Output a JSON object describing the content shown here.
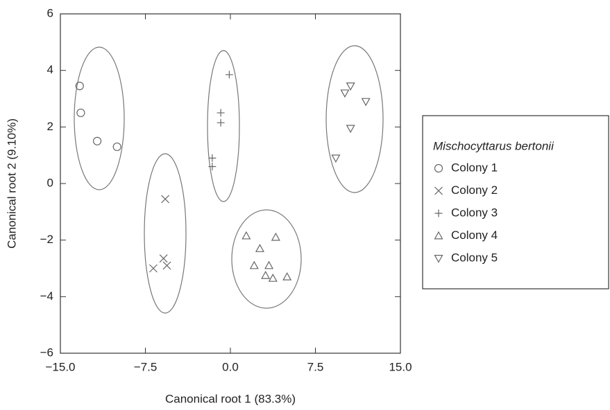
{
  "chart_data": {
    "type": "scatter",
    "xlabel": "Canonical root 1 (83.3%)",
    "ylabel": "Canonical root 2 (9.10%)",
    "xlim": [
      -15,
      15
    ],
    "ylim": [
      -6,
      6
    ],
    "xticks": [
      {
        "value": -15,
        "label": "−15.0"
      },
      {
        "value": -7.5,
        "label": "−7.5"
      },
      {
        "value": 0,
        "label": "0.0"
      },
      {
        "value": 7.5,
        "label": "7.5"
      },
      {
        "value": 15,
        "label": "15.0"
      }
    ],
    "yticks": [
      {
        "value": -6,
        "label": "−6"
      },
      {
        "value": -4,
        "label": "−4"
      },
      {
        "value": -2,
        "label": "−2"
      },
      0,
      2,
      4,
      6
    ],
    "legend_title": "Mischocyttarus bertonii",
    "series": [
      {
        "name": "Colony 1",
        "marker": "circle",
        "color": "#666666",
        "x": [
          -13.3,
          -13.2,
          -11.75,
          -10.0
        ],
        "values": [
          3.45,
          2.5,
          1.5,
          1.3
        ]
      },
      {
        "name": "Colony 2",
        "marker": "x",
        "color": "#666666",
        "x": [
          -5.75,
          -5.9,
          -5.6,
          -6.8
        ],
        "values": [
          -0.55,
          -2.65,
          -2.9,
          -3.0
        ]
      },
      {
        "name": "Colony 3",
        "marker": "plus",
        "color": "#666666",
        "x": [
          -0.1,
          -0.85,
          -0.85,
          -1.6,
          -1.6
        ],
        "values": [
          3.85,
          2.5,
          2.15,
          0.9,
          0.6
        ]
      },
      {
        "name": "Colony 4",
        "marker": "triangle-up",
        "color": "#666666",
        "x": [
          1.4,
          4.0,
          2.6,
          2.1,
          3.4,
          3.1,
          3.75,
          5.0
        ],
        "values": [
          -1.85,
          -1.9,
          -2.3,
          -2.9,
          -2.9,
          -3.25,
          -3.35,
          -3.3
        ]
      },
      {
        "name": "Colony 5",
        "marker": "triangle-down",
        "color": "#666666",
        "x": [
          9.3,
          10.1,
          10.6,
          10.6,
          11.95
        ],
        "values": [
          0.9,
          3.2,
          3.45,
          1.95,
          2.9
        ]
      }
    ]
  }
}
